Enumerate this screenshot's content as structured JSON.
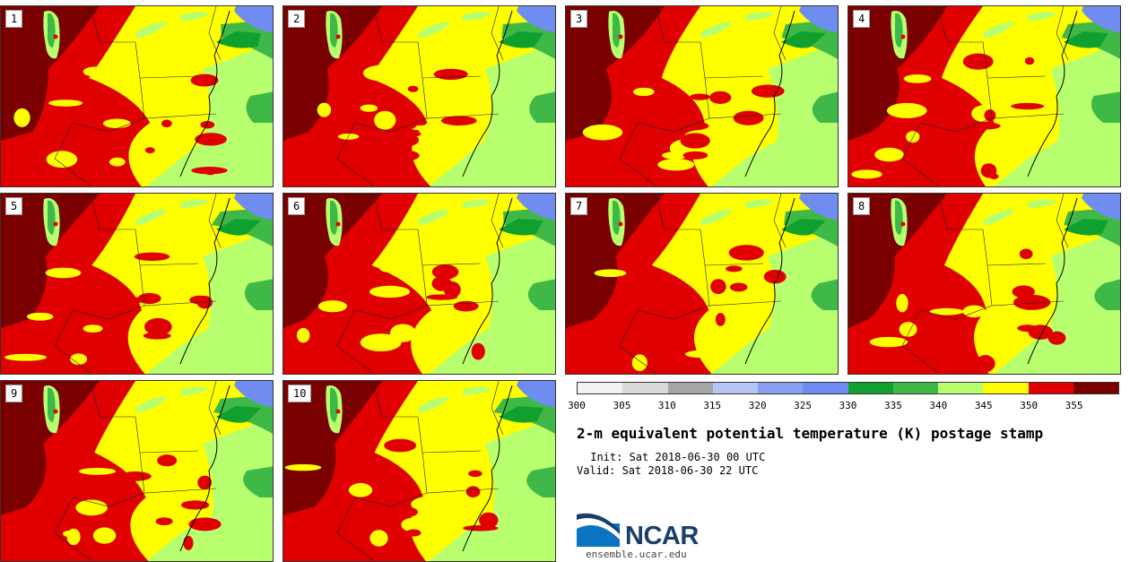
{
  "panels": [
    {
      "label": "1"
    },
    {
      "label": "2"
    },
    {
      "label": "3"
    },
    {
      "label": "4"
    },
    {
      "label": "5"
    },
    {
      "label": "6"
    },
    {
      "label": "7"
    },
    {
      "label": "8"
    },
    {
      "label": "9"
    },
    {
      "label": "10"
    }
  ],
  "colorbar": {
    "ticks": [
      "300",
      "305",
      "310",
      "315",
      "320",
      "325",
      "330",
      "335",
      "340",
      "345",
      "350",
      "355"
    ],
    "colors": [
      "#f2f2f2",
      "#d9d9d9",
      "#a6a6a6",
      "#b4c6f6",
      "#8aa0f0",
      "#6f8cf0",
      "#10a030",
      "#40b848",
      "#b8ff70",
      "#ffff00",
      "#e00000",
      "#7a0000"
    ]
  },
  "title": "2-m equivalent potential temperature (K) postage stamp",
  "init": " Init: Sat 2018-06-30 00 UTC",
  "valid": "Valid: Sat 2018-06-30 22 UTC",
  "logo": {
    "text": "NCAR",
    "url_text": "ensemble.ucar.edu"
  },
  "colors": {
    "dark_red": "#7a0000",
    "red": "#e00000",
    "yellow": "#ffff00",
    "light_green": "#b8ff70",
    "green": "#40b848",
    "dark_green": "#10a030",
    "blue": "#6f8cf0",
    "light_blue": "#b4c6f6"
  }
}
